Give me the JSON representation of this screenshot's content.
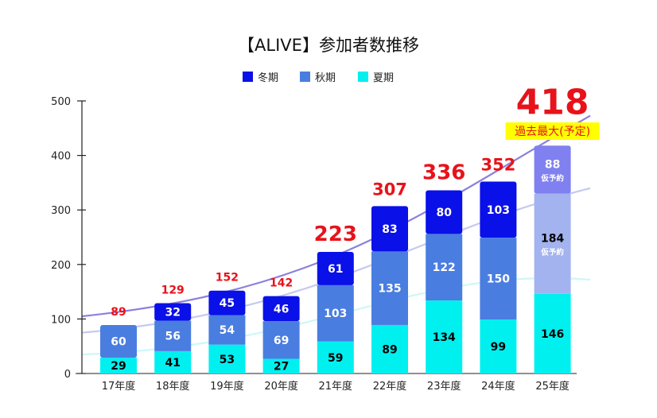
{
  "chart_data": {
    "type": "bar",
    "stacked": true,
    "title": "【ALIVE】参加者数推移",
    "categories": [
      "17年度",
      "18年度",
      "19年度",
      "20年度",
      "21年度",
      "22年度",
      "23年度",
      "24年度",
      "25年度"
    ],
    "series": [
      {
        "name": "夏期",
        "values": [
          29,
          41,
          53,
          27,
          59,
          89,
          134,
          99,
          146
        ],
        "color": "#00f0f0"
      },
      {
        "name": "秋期",
        "values": [
          60,
          56,
          54,
          69,
          103,
          135,
          122,
          150,
          184
        ],
        "color": "#4a7de0"
      },
      {
        "name": "冬期",
        "values": [
          null,
          32,
          45,
          46,
          61,
          83,
          80,
          103,
          88
        ],
        "color": "#0a10e8"
      }
    ],
    "totals": [
      89,
      129,
      152,
      142,
      223,
      307,
      336,
      352,
      418
    ],
    "yticks": [
      0,
      100,
      200,
      300,
      400,
      500
    ],
    "ylim": [
      0,
      500
    ],
    "legend_position": "top-center",
    "grid": false,
    "projected_colors": {
      "夏期": "#00f0f0",
      "秋期": "#a3b3f0",
      "冬期": "#8080f0"
    },
    "annotations": {
      "record_note": "過去最大(予定)",
      "provisional_label": "仮予約",
      "note_highlight_color": "#ffff00"
    },
    "trendline_colors": [
      "#8b80dc",
      "#c5c9ef",
      "#cdf7f7"
    ]
  }
}
